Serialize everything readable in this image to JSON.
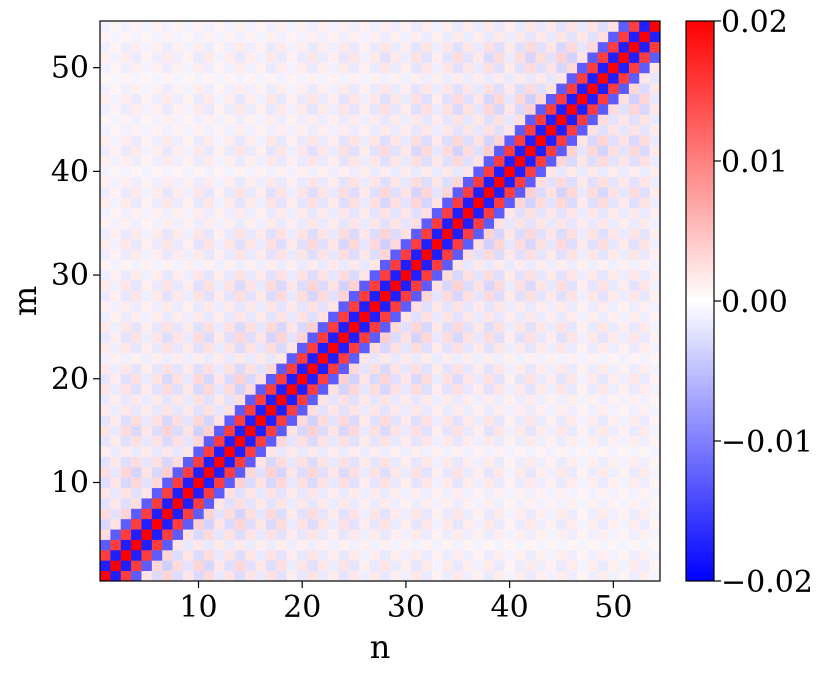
{
  "chart_data": {
    "type": "heatmap",
    "xlabel": "n",
    "ylabel": "m",
    "x_range": [
      1,
      54
    ],
    "y_range": [
      1,
      54
    ],
    "x_ticks": [
      10,
      20,
      30,
      40,
      50
    ],
    "y_ticks": [
      10,
      20,
      30,
      40,
      50
    ],
    "x_tick_labels": [
      "10",
      "20",
      "30",
      "40",
      "50"
    ],
    "y_tick_labels": [
      "10",
      "20",
      "30",
      "40",
      "50"
    ],
    "colormap": "bwr",
    "color_range": [
      -0.02,
      0.02
    ],
    "colorbar_ticks": [
      0.02,
      0.01,
      0.0,
      -0.01,
      -0.02
    ],
    "colorbar_tick_labels": [
      "0.02",
      "0.01",
      "0.00",
      "−0.01",
      "−0.02"
    ],
    "colors": {
      "low": "#0000ff",
      "mid": "#ffffff",
      "high": "#ff0000"
    },
    "pattern_description_values": {
      "diagonal_band_halfwidth": 3,
      "diagonal_amplitude": 0.02,
      "off_diagonal_amplitude": 0.004
    }
  }
}
